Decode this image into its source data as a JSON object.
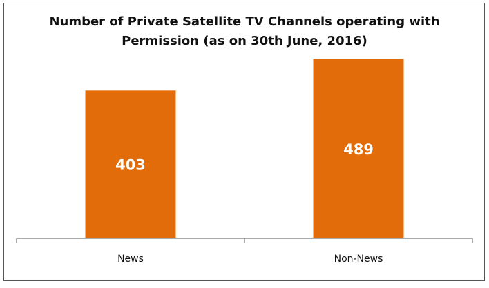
{
  "chart_data": {
    "type": "bar",
    "title_lines": [
      "Number of Private Satellite TV Channels operating with",
      "Permission (as on 30th June, 2016)"
    ],
    "categories": [
      "News",
      "Non-News"
    ],
    "values": [
      403,
      489
    ],
    "data_labels": [
      "403",
      "489"
    ],
    "xlabel": "",
    "ylabel": "",
    "ylim": [
      0,
      520
    ],
    "grid": false,
    "legend": "none",
    "bar_color": "#E36C0A"
  }
}
